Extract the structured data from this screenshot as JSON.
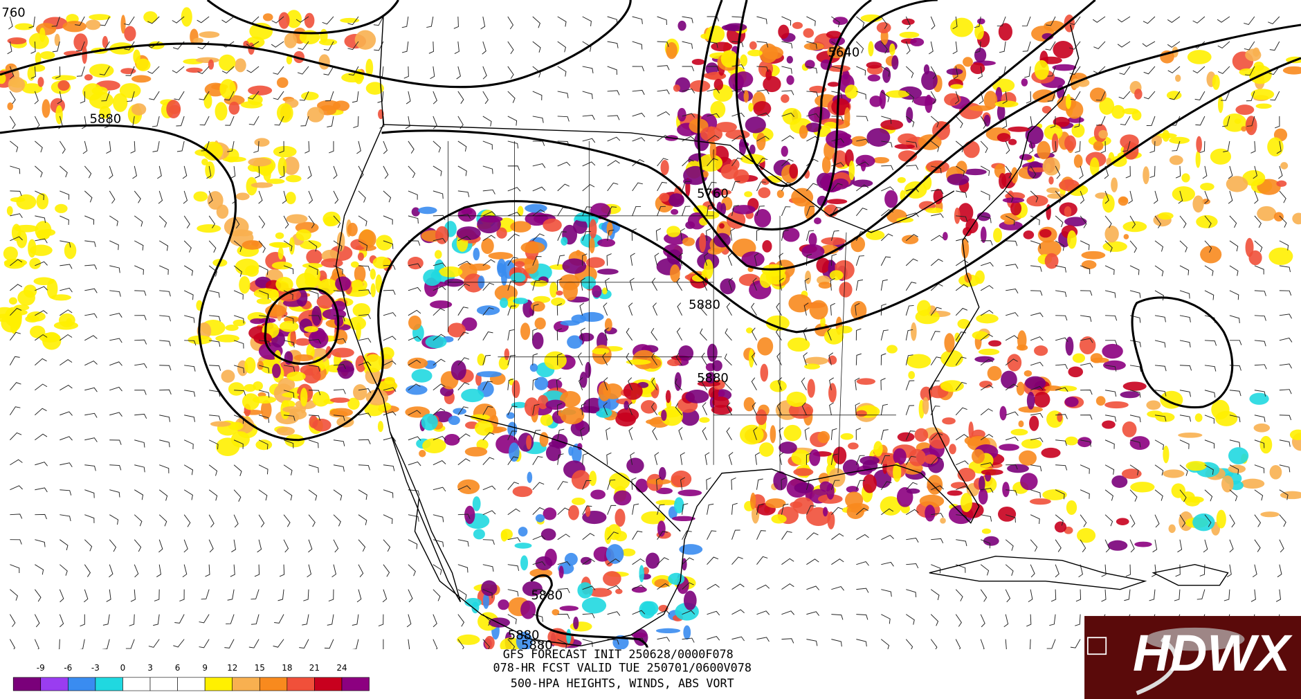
{
  "map": {
    "contour_labels": [
      "760",
      "5880",
      "5640",
      "5760",
      "5880",
      "5880",
      "5880",
      "5880",
      "5880"
    ],
    "footer": [
      "GFS FORECAST INIT 250628/0000F078",
      "078-HR FCST VALID TUE 250701/0600V078",
      "500-HPA HEIGHTS, WINDS, ABS VORT"
    ],
    "colorbar": {
      "labels": [
        -9,
        -6,
        -3,
        0,
        3,
        6,
        9,
        12,
        15,
        18,
        21,
        24
      ],
      "colors": [
        "#7a007a",
        "#9a3df0",
        "#3a8cf0",
        "#20d8e0",
        "#ffffff",
        "#ffffff",
        "#ffffff",
        "#fff000",
        "#f8b050",
        "#f88a1e",
        "#f0503a",
        "#c8001e",
        "#8c0080"
      ]
    },
    "logo": "HDWX"
  }
}
